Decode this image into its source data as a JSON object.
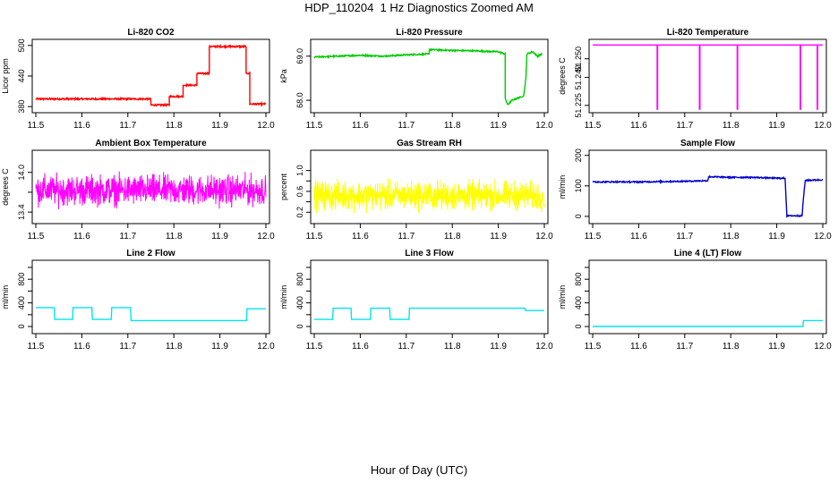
{
  "figure": {
    "title": "HDP_110204  1 Hz Diagnostics Zoomed AM",
    "x_axis_title": "Hour of Day (UTC)"
  },
  "chart_data": [
    {
      "type": "line",
      "title": "Li-820 CO2",
      "ylabel": "Licor ppm",
      "xlim": [
        11.5,
        12.0
      ],
      "ylim": [
        375,
        505
      ],
      "x_ticks": [
        11.5,
        11.6,
        11.7,
        11.8,
        11.9,
        12.0
      ],
      "y_ticks": [
        380,
        440,
        500
      ],
      "y_tick_labels": [
        "380",
        "440",
        "500"
      ],
      "grid": false,
      "series": [
        {
          "color": "#ff0000",
          "x": [
            11.5,
            11.75,
            11.75,
            11.79,
            11.79,
            11.82,
            11.82,
            11.85,
            11.85,
            11.877,
            11.877,
            11.957,
            11.957,
            11.965,
            11.965,
            12.0
          ],
          "y": [
            395,
            395,
            383,
            383,
            400,
            400,
            422,
            422,
            445,
            445,
            498,
            498,
            445,
            445,
            385,
            385
          ],
          "noise": 1.5
        }
      ]
    },
    {
      "type": "line",
      "title": "Li-820 Pressure",
      "ylabel": "kPa",
      "xlim": [
        11.5,
        12.0
      ],
      "ylim": [
        67.8,
        69.3
      ],
      "x_ticks": [
        11.5,
        11.6,
        11.7,
        11.8,
        11.9,
        12.0
      ],
      "y_ticks": [
        68.0,
        69.0
      ],
      "y_tick_labels": [
        "68.0",
        "69.0"
      ],
      "grid": false,
      "series": [
        {
          "color": "#00cc00",
          "x": [
            11.5,
            11.55,
            11.6,
            11.65,
            11.7,
            11.75,
            11.75,
            11.8,
            11.85,
            11.9,
            11.915,
            11.915,
            11.92,
            11.93,
            11.955,
            11.96,
            11.962,
            11.975,
            11.985,
            11.995
          ],
          "y": [
            68.98,
            69.0,
            69.02,
            69.0,
            69.03,
            69.05,
            69.15,
            69.13,
            69.12,
            69.1,
            69.05,
            68.05,
            67.9,
            68.0,
            68.1,
            68.5,
            69.05,
            69.1,
            69.0,
            69.05
          ],
          "noise": 0.015
        }
      ]
    },
    {
      "type": "line",
      "title": "Li-820 Temperature",
      "ylabel": "degrees C",
      "xlim": [
        11.5,
        12.0
      ],
      "ylim": [
        51.223,
        51.2585
      ],
      "x_ticks": [
        11.5,
        11.6,
        11.7,
        11.8,
        11.9,
        12.0
      ],
      "y_ticks": [
        51.225,
        51.24,
        51.25
      ],
      "y_tick_labels": [
        "51.225",
        "51.240",
        "51.250"
      ],
      "grid": false,
      "series": [
        {
          "color": "#ff00ff",
          "x": [
            11.5,
            11.64,
            11.64,
            11.641,
            11.641,
            11.732,
            11.732,
            11.733,
            11.733,
            11.814,
            11.814,
            11.815,
            11.815,
            11.951,
            11.951,
            11.952,
            11.952,
            11.988,
            11.988,
            11.989,
            11.989,
            12.0
          ],
          "y": [
            51.2574,
            51.2574,
            51.223,
            51.223,
            51.2574,
            51.2574,
            51.223,
            51.223,
            51.2574,
            51.2574,
            51.223,
            51.223,
            51.2574,
            51.2574,
            51.223,
            51.223,
            51.2574,
            51.2574,
            51.223,
            51.223,
            51.2574,
            51.2574
          ]
        }
      ]
    },
    {
      "type": "line",
      "title": "Ambient Box Temperature",
      "ylabel": "degrees C",
      "xlim": [
        11.5,
        12.0
      ],
      "ylim": [
        13.28,
        14.28
      ],
      "x_ticks": [
        11.5,
        11.6,
        11.7,
        11.8,
        11.9,
        12.0
      ],
      "y_ticks": [
        13.4,
        13.7,
        14.0
      ],
      "y_tick_labels": [
        "13.4",
        "",
        "14.0"
      ],
      "grid": false,
      "series": [
        {
          "color": "#ff00ff",
          "x": [
            11.5,
            12.0
          ],
          "y": [
            13.73,
            13.73
          ],
          "noise": 0.33,
          "samples": 900
        }
      ]
    },
    {
      "type": "line",
      "title": "Gas Stream RH",
      "ylabel": "percent",
      "xlim": [
        11.5,
        12.0
      ],
      "ylim": [
        0.05,
        1.32
      ],
      "x_ticks": [
        11.5,
        11.6,
        11.7,
        11.8,
        11.9,
        12.0
      ],
      "y_ticks": [
        0.2,
        0.4,
        0.6,
        0.8,
        1.0
      ],
      "y_tick_labels": [
        "0.2",
        "",
        "0.6",
        "",
        "1.0"
      ],
      "grid": false,
      "series": [
        {
          "color": "#ffff00",
          "x": [
            11.5,
            12.0
          ],
          "y": [
            0.52,
            0.52
          ],
          "noise": 0.4,
          "samples": 900
        }
      ]
    },
    {
      "type": "line",
      "title": "Sample Flow",
      "ylabel": "ml/min",
      "xlim": [
        11.5,
        12.0
      ],
      "ylim": [
        -12,
        205
      ],
      "x_ticks": [
        11.5,
        11.6,
        11.7,
        11.8,
        11.9,
        12.0
      ],
      "y_ticks": [
        0,
        100,
        200
      ],
      "y_tick_labels": [
        "0",
        "100",
        "200"
      ],
      "grid": false,
      "series": [
        {
          "color": "#0000cc",
          "x": [
            11.5,
            11.6,
            11.7,
            11.75,
            11.752,
            11.8,
            11.85,
            11.9,
            11.918,
            11.922,
            11.955,
            11.958,
            11.962,
            12.0
          ],
          "y": [
            113,
            113,
            115,
            117,
            130,
            128,
            128,
            125,
            125,
            2,
            2,
            60,
            118,
            120
          ],
          "noise": 2
        }
      ]
    },
    {
      "type": "line",
      "title": "Line 2 Flow",
      "ylabel": "ml/min",
      "xlim": [
        11.5,
        12.0
      ],
      "ylim": [
        -60,
        1060
      ],
      "x_ticks": [
        11.5,
        11.6,
        11.7,
        11.8,
        11.9,
        12.0
      ],
      "y_ticks": [
        0,
        200,
        400,
        600,
        800,
        1000
      ],
      "y_tick_labels": [
        "0",
        "",
        "400",
        "",
        "800",
        ""
      ],
      "grid": false,
      "series": [
        {
          "color": "#00e5ee",
          "x": [
            11.5,
            11.54,
            11.541,
            11.58,
            11.581,
            11.622,
            11.623,
            11.664,
            11.665,
            11.706,
            11.707,
            11.958,
            11.959,
            12.0
          ],
          "y": [
            320,
            320,
            120,
            120,
            320,
            320,
            120,
            120,
            320,
            320,
            100,
            100,
            300,
            300
          ]
        }
      ]
    },
    {
      "type": "line",
      "title": "Line 3 Flow",
      "ylabel": "ml/min",
      "xlim": [
        11.5,
        12.0
      ],
      "ylim": [
        -60,
        1060
      ],
      "x_ticks": [
        11.5,
        11.6,
        11.7,
        11.8,
        11.9,
        12.0
      ],
      "y_ticks": [
        0,
        200,
        400,
        600,
        800,
        1000
      ],
      "y_tick_labels": [
        "0",
        "",
        "400",
        "",
        "800",
        ""
      ],
      "grid": false,
      "series": [
        {
          "color": "#00e5ee",
          "x": [
            11.5,
            11.54,
            11.541,
            11.58,
            11.581,
            11.622,
            11.623,
            11.664,
            11.665,
            11.706,
            11.707,
            11.958,
            11.959,
            12.0
          ],
          "y": [
            120,
            120,
            310,
            310,
            120,
            120,
            310,
            310,
            120,
            120,
            310,
            310,
            270,
            270
          ]
        }
      ]
    },
    {
      "type": "line",
      "title": "Line 4 (LT) Flow",
      "ylabel": "ml/min",
      "xlim": [
        11.5,
        12.0
      ],
      "ylim": [
        -60,
        1060
      ],
      "x_ticks": [
        11.5,
        11.6,
        11.7,
        11.8,
        11.9,
        12.0
      ],
      "y_ticks": [
        0,
        200,
        400,
        600,
        800,
        1000
      ],
      "y_tick_labels": [
        "0",
        "",
        "400",
        "",
        "800",
        ""
      ],
      "grid": false,
      "series": [
        {
          "color": "#00e5ee",
          "x": [
            11.5,
            11.957,
            11.958,
            12.0
          ],
          "y": [
            0,
            0,
            100,
            100
          ]
        }
      ]
    }
  ]
}
